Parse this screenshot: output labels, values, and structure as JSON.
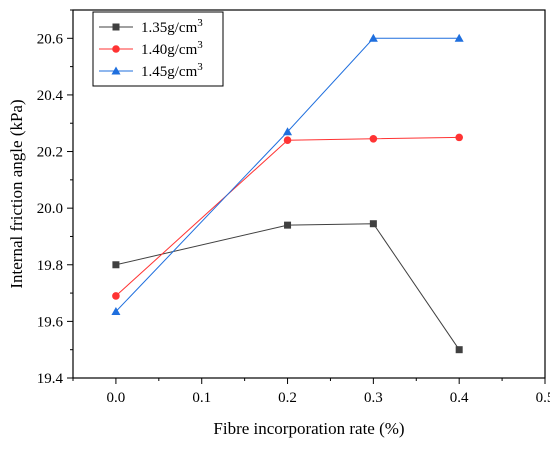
{
  "chart_data": {
    "type": "line",
    "xlabel": "Fibre incorporation rate (%)",
    "ylabel": "Internal friction angle (kPa)",
    "xlim": [
      -0.05,
      0.5
    ],
    "ylim": [
      19.4,
      20.7
    ],
    "xticks": [
      "0.0",
      "0.1",
      "0.2",
      "0.3",
      "0.4",
      "0.5"
    ],
    "xtick_values": [
      0.0,
      0.1,
      0.2,
      0.3,
      0.4,
      0.5
    ],
    "yticks": [
      "19.4",
      "19.6",
      "19.8",
      "20.0",
      "20.2",
      "20.4",
      "20.6"
    ],
    "ytick_values": [
      19.4,
      19.6,
      19.8,
      20.0,
      20.2,
      20.4,
      20.6
    ],
    "grid": false,
    "legend_position": "top-left",
    "x": [
      0.0,
      0.2,
      0.3,
      0.4
    ],
    "series": [
      {
        "name": "1.35g/cm",
        "superscript": "3",
        "marker": "square",
        "color": "#404040",
        "values": [
          19.8,
          19.94,
          19.945,
          19.5
        ]
      },
      {
        "name": "1.40g/cm",
        "superscript": "3",
        "marker": "circle",
        "color": "#ff3333",
        "values": [
          19.69,
          20.24,
          20.245,
          20.25
        ]
      },
      {
        "name": "1.45g/cm",
        "superscript": "3",
        "marker": "triangle",
        "color": "#1f6fde",
        "values": [
          19.635,
          20.27,
          20.6,
          20.6
        ]
      }
    ]
  }
}
